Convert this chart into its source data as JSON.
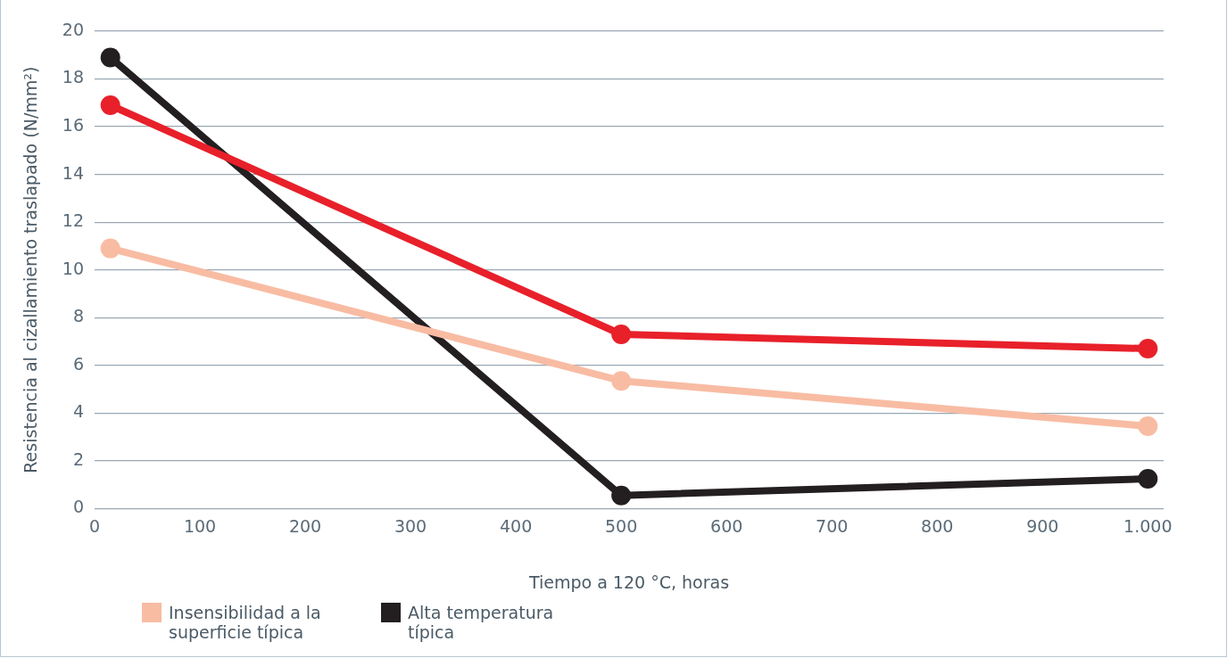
{
  "chart_data": {
    "type": "line",
    "xlabel": "Tiempo a 120 °C, horas",
    "ylabel": "Resistencia al cizallamiento traslapado (N/mm²)",
    "x": [
      15,
      500,
      1000
    ],
    "series": [
      {
        "color": "#e8202a",
        "values": [
          16.9,
          7.3,
          6.7
        ]
      },
      {
        "name": "Insensibilidad a la superficie típica",
        "color": "#f8bca3",
        "values": [
          10.9,
          5.35,
          3.45
        ]
      },
      {
        "name": "Alta temperatura típica",
        "color": "#231f20",
        "values": [
          18.9,
          0.55,
          1.25
        ]
      }
    ],
    "xlim": [
      0,
      1015
    ],
    "xticks": [
      0,
      100,
      200,
      300,
      400,
      500,
      600,
      700,
      800,
      900,
      {
        "value": 1000,
        "label": "1.000"
      }
    ],
    "ylim": [
      0,
      20
    ],
    "yticks": [
      0,
      2,
      4,
      6,
      8,
      10,
      12,
      14,
      16,
      18,
      20
    ],
    "grid": "y",
    "legend": "bottom left",
    "marker": "circle",
    "line_style": "solid"
  }
}
